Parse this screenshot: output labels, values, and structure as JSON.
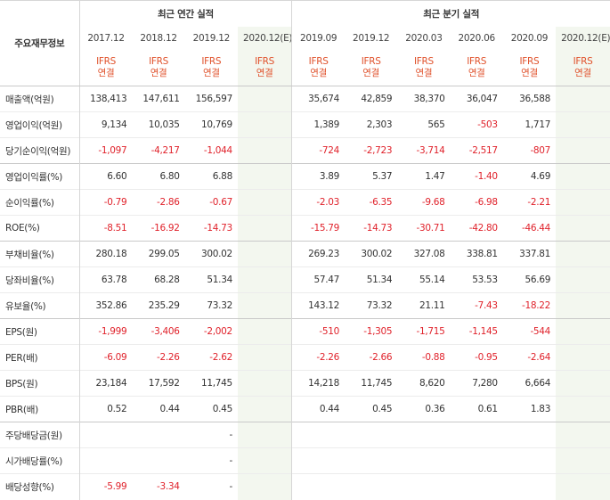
{
  "section_label": "주요재무정보",
  "annual_title": "최근 연간 실적",
  "quarter_title": "최근 분기 실적",
  "annual_periods": [
    "2017.12",
    "2018.12",
    "2019.12",
    "2020.12(E)"
  ],
  "quarter_periods": [
    "2019.09",
    "2019.12",
    "2020.03",
    "2020.06",
    "2020.09",
    "2020.12(E)"
  ],
  "ifrs_line1": "IFRS",
  "ifrs_line2": "연결",
  "rows": [
    {
      "label": "매출액(억원)",
      "values": [
        "138,413",
        "147,611",
        "156,597",
        "",
        "35,674",
        "42,859",
        "38,370",
        "36,047",
        "36,588",
        ""
      ]
    },
    {
      "label": "영업이익(억원)",
      "values": [
        "9,134",
        "10,035",
        "10,769",
        "",
        "1,389",
        "2,303",
        "565",
        "-503",
        "1,717",
        ""
      ]
    },
    {
      "label": "당기순이익(억원)",
      "values": [
        "-1,097",
        "-4,217",
        "-1,044",
        "",
        "-724",
        "-2,723",
        "-3,714",
        "-2,517",
        "-807",
        ""
      ]
    },
    {
      "label": "영업이익률(%)",
      "values": [
        "6.60",
        "6.80",
        "6.88",
        "",
        "3.89",
        "5.37",
        "1.47",
        "-1.40",
        "4.69",
        ""
      ]
    },
    {
      "label": "순이익률(%)",
      "values": [
        "-0.79",
        "-2.86",
        "-0.67",
        "",
        "-2.03",
        "-6.35",
        "-9.68",
        "-6.98",
        "-2.21",
        ""
      ]
    },
    {
      "label": "ROE(%)",
      "values": [
        "-8.51",
        "-16.92",
        "-14.73",
        "",
        "-15.79",
        "-14.73",
        "-30.71",
        "-42.80",
        "-46.44",
        ""
      ]
    },
    {
      "label": "부채비율(%)",
      "values": [
        "280.18",
        "299.05",
        "300.02",
        "",
        "269.23",
        "300.02",
        "327.08",
        "338.81",
        "337.81",
        ""
      ]
    },
    {
      "label": "당좌비율(%)",
      "values": [
        "63.78",
        "68.28",
        "51.34",
        "",
        "57.47",
        "51.34",
        "55.14",
        "53.53",
        "56.69",
        ""
      ]
    },
    {
      "label": "유보율(%)",
      "values": [
        "352.86",
        "235.29",
        "73.32",
        "",
        "143.12",
        "73.32",
        "21.11",
        "-7.43",
        "-18.22",
        ""
      ]
    },
    {
      "label": "EPS(원)",
      "values": [
        "-1,999",
        "-3,406",
        "-2,002",
        "",
        "-510",
        "-1,305",
        "-1,715",
        "-1,145",
        "-544",
        ""
      ]
    },
    {
      "label": "PER(배)",
      "values": [
        "-6.09",
        "-2.26",
        "-2.62",
        "",
        "-2.26",
        "-2.66",
        "-0.88",
        "-0.95",
        "-2.64",
        ""
      ]
    },
    {
      "label": "BPS(원)",
      "values": [
        "23,184",
        "17,592",
        "11,745",
        "",
        "14,218",
        "11,745",
        "8,620",
        "7,280",
        "6,664",
        ""
      ]
    },
    {
      "label": "PBR(배)",
      "values": [
        "0.52",
        "0.44",
        "0.45",
        "",
        "0.44",
        "0.45",
        "0.36",
        "0.61",
        "1.83",
        ""
      ]
    },
    {
      "label": "주당배당금(원)",
      "values": [
        "",
        "",
        "-",
        "",
        "",
        "",
        "",
        "",
        "",
        ""
      ]
    },
    {
      "label": "시가배당률(%)",
      "values": [
        "",
        "",
        "-",
        "",
        "",
        "",
        "",
        "",
        "",
        ""
      ]
    },
    {
      "label": "배당성향(%)",
      "values": [
        "-5.99",
        "-3.34",
        "-",
        "",
        "",
        "",
        "",
        "",
        "",
        ""
      ]
    }
  ],
  "group_starts": [
    0,
    3,
    6,
    9,
    13
  ]
}
